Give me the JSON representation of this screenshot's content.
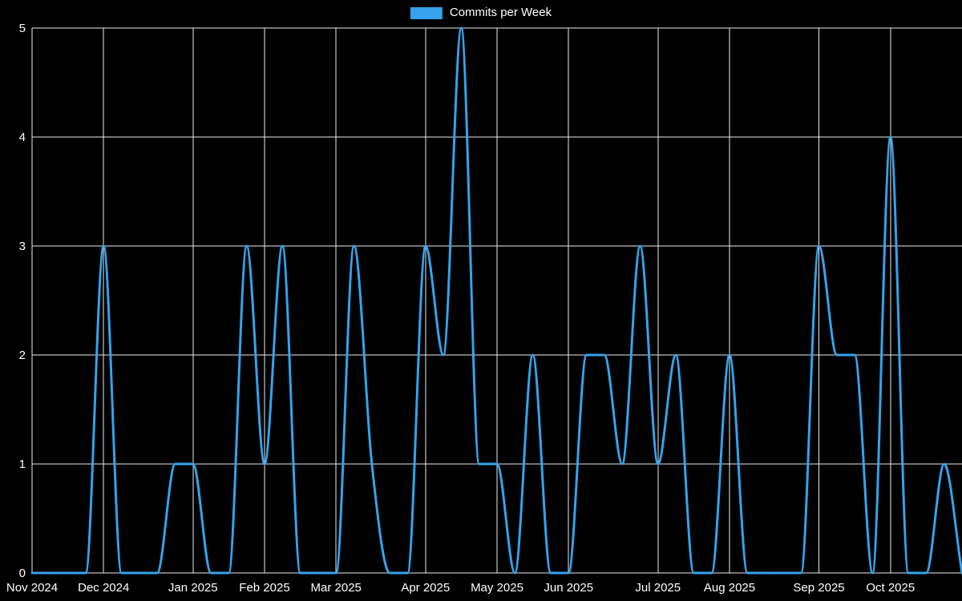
{
  "chart_data": {
    "type": "line",
    "legend_label": "Commits per Week",
    "series": [
      {
        "name": "Commits per Week",
        "values": [
          0,
          0,
          0,
          0,
          3,
          0,
          0,
          0,
          1,
          1,
          0,
          0,
          3,
          1,
          3,
          0,
          0,
          0,
          3,
          1,
          0,
          0,
          3,
          2,
          5,
          1,
          1,
          0,
          2,
          0,
          0,
          2,
          2,
          1,
          3,
          1,
          2,
          0,
          0,
          2,
          0,
          0,
          0,
          0,
          3,
          2,
          2,
          0,
          4,
          0,
          0,
          1,
          0
        ]
      }
    ],
    "x_unit": "week",
    "x_tick_labels": [
      "Nov 2024",
      "Dec 2024",
      "Jan 2025",
      "Feb 2025",
      "Mar 2025",
      "Apr 2025",
      "May 2025",
      "Jun 2025",
      "Jul 2025",
      "Aug 2025",
      "Sep 2025",
      "Oct 2025"
    ],
    "x_tick_week_indices": [
      0,
      4,
      9,
      13,
      17,
      22,
      26,
      30,
      35,
      39,
      44,
      48
    ],
    "y_ticks": [
      0,
      1,
      2,
      3,
      4,
      5
    ],
    "ylim": [
      0,
      5
    ],
    "grid": true,
    "legend_position": "top",
    "line_color": "#36a2eb",
    "line_width": 3,
    "background_color": "#000000",
    "grid_color": "#ffffff",
    "text_color": "#ffffff"
  }
}
